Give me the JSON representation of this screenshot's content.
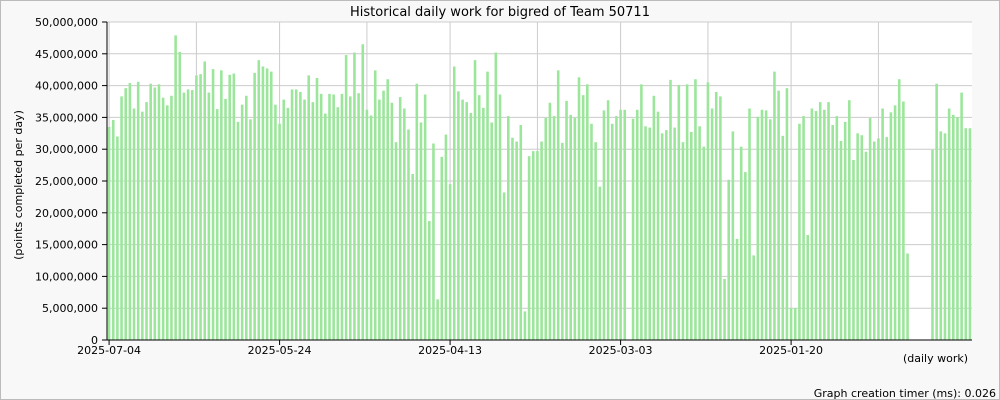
{
  "chart_data": {
    "type": "bar",
    "title": "Historical daily work for bigred of Team 50711",
    "xlabel": "(daily work)",
    "ylabel": "(points completed per day)",
    "ylim": [
      0,
      50000000
    ],
    "y_ticks": [
      0,
      5000000,
      10000000,
      15000000,
      20000000,
      25000000,
      30000000,
      35000000,
      40000000,
      45000000,
      50000000
    ],
    "y_tick_labels": [
      "0",
      "5,000,000",
      "10,000,000",
      "15,000,000",
      "20,000,000",
      "25,000,000",
      "30,000,000",
      "35,000,000",
      "40,000,000",
      "45,000,000",
      "50,000,000"
    ],
    "x_tick_labels": [
      {
        "label": "2025-07-04",
        "index": 0
      },
      {
        "label": "2025-05-24",
        "index": 41
      },
      {
        "label": "2025-04-13",
        "index": 82
      },
      {
        "label": "2025-03-03",
        "index": 123
      },
      {
        "label": "2025-01-20",
        "index": 164
      }
    ],
    "values": [
      33500000,
      34600000,
      32000000,
      38300000,
      39600000,
      40400000,
      36400000,
      40600000,
      35900000,
      37400000,
      40300000,
      39700000,
      40200000,
      38100000,
      36900000,
      38400000,
      47900000,
      45300000,
      38900000,
      39400000,
      39300000,
      41600000,
      41800000,
      43800000,
      38900000,
      42600000,
      36300000,
      42400000,
      37900000,
      41700000,
      41900000,
      34300000,
      37000000,
      38400000,
      34700000,
      42000000,
      44000000,
      43000000,
      42700000,
      42200000,
      37000000,
      34000000,
      37800000,
      36500000,
      39400000,
      39400000,
      39000000,
      37800000,
      41600000,
      37400000,
      41200000,
      38700000,
      35600000,
      38700000,
      38600000,
      36600000,
      38700000,
      44800000,
      38300000,
      45200000,
      38800000,
      46500000,
      36200000,
      35300000,
      42400000,
      37800000,
      39200000,
      41000000,
      37300000,
      31100000,
      38200000,
      36400000,
      33100000,
      26100000,
      40300000,
      34200000,
      38600000,
      18700000,
      30900000,
      6400000,
      28800000,
      32300000,
      24500000,
      43000000,
      39100000,
      37800000,
      37400000,
      35700000,
      44000000,
      38500000,
      36500000,
      42200000,
      34200000,
      45200000,
      38600000,
      23200000,
      35200000,
      31800000,
      31200000,
      33800000,
      4500000,
      28900000,
      29700000,
      29700000,
      31200000,
      34900000,
      37300000,
      35200000,
      42400000,
      31000000,
      37600000,
      35400000,
      34900000,
      41300000,
      38500000,
      40200000,
      34000000,
      31100000,
      24100000,
      36100000,
      37700000,
      34000000,
      35200000,
      36200000,
      36200000,
      0,
      34800000,
      36200000,
      40200000,
      33600000,
      33400000,
      38400000,
      35900000,
      32500000,
      33000000,
      40900000,
      33400000,
      40100000,
      31100000,
      40200000,
      32700000,
      41000000,
      33600000,
      30400000,
      40500000,
      36400000,
      39000000,
      38300000,
      9600000,
      25200000,
      32800000,
      15900000,
      30400000,
      26400000,
      36400000,
      13300000,
      35100000,
      36200000,
      36100000,
      34700000,
      42200000,
      39200000,
      32100000,
      39600000,
      5000000,
      5000000,
      34000000,
      35200000,
      16500000,
      36400000,
      36000000,
      37400000,
      36200000,
      37400000,
      33800000,
      35200000,
      31300000,
      34300000,
      37700000,
      28300000,
      32500000,
      32200000,
      29600000,
      34900000,
      31200000,
      31700000,
      36400000,
      31900000,
      35800000,
      36900000,
      41000000,
      37500000,
      13600000,
      0,
      0,
      0,
      0,
      0,
      29900000,
      40300000,
      32800000,
      32500000,
      36400000,
      35400000,
      35000000,
      38900000,
      33300000,
      33300000
    ],
    "bar_color": "#9be69b",
    "grid": true,
    "legend": "none"
  },
  "footer": {
    "timer_text": "Graph creation timer (ms): 0.026"
  },
  "colors": {
    "background": "#f8f8f8",
    "plot_background": "#ffffff",
    "grid": "#cccccc",
    "bar": "#9be69b"
  }
}
